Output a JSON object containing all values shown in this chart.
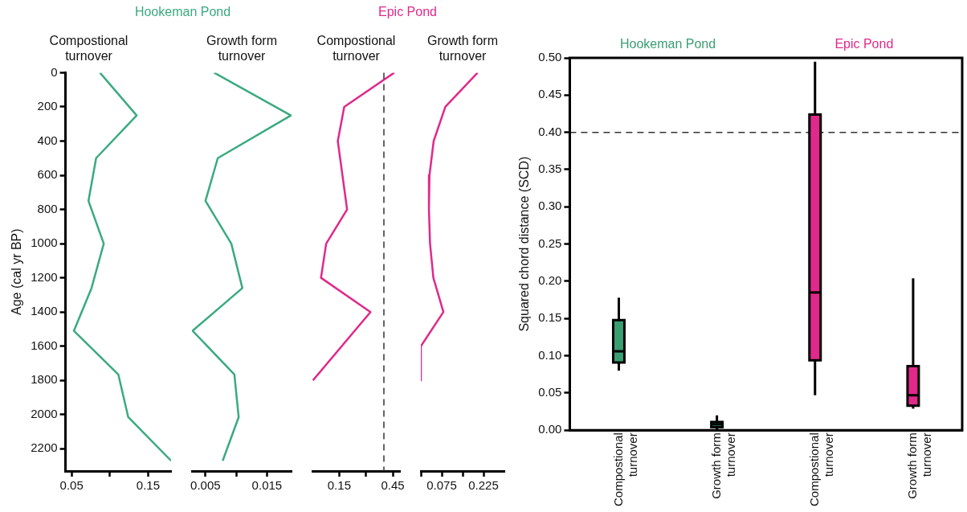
{
  "chart_data": [
    {
      "type": "line",
      "title": "Compostional turnover",
      "ylabel": "Age (cal yr BP)",
      "annotations": [
        "Hookeman Pond"
      ],
      "series": [
        {
          "color": "#3aaa7f",
          "x": [
            0.087,
            0.135,
            0.082,
            0.072,
            0.092,
            0.076,
            0.053,
            0.111,
            0.124,
            0.18
          ],
          "values": [
            0,
            250,
            500,
            750,
            1000,
            1260,
            1510,
            1765,
            2015,
            2270
          ]
        }
      ],
      "xlim": [
        0.042,
        0.18
      ],
      "xticks": [
        0.05,
        {
          "value": 0.1,
          "label": null
        },
        0.15
      ],
      "ylim": [
        2330,
        0
      ],
      "yticks": [
        0,
        200,
        400,
        600,
        800,
        1000,
        1200,
        1400,
        1600,
        1800,
        2000,
        2200
      ]
    },
    {
      "type": "line",
      "title": "Growth form turnover",
      "tick_labels": "x",
      "series": [
        {
          "color": "#3aaa7f",
          "x": [
            0.0064,
            0.0189,
            0.007,
            0.005,
            0.0092,
            0.011,
            0.0029,
            0.0097,
            0.0104,
            0.0078
          ],
          "values": [
            0,
            250,
            500,
            750,
            1000,
            1260,
            1510,
            1765,
            2015,
            2270
          ]
        }
      ],
      "xlim": [
        0.0028,
        0.019
      ],
      "xticks": [
        0.005,
        {
          "value": 0.01,
          "label": null
        },
        0.015
      ],
      "ylim": [
        2330,
        0
      ]
    },
    {
      "type": "line",
      "title": "Compostional turnover",
      "tick_labels": "x",
      "annotations": [
        "Epic Pond"
      ],
      "series": [
        {
          "color": "#e0298a",
          "x": [
            0.458,
            0.178,
            0.142,
            0.194,
            0.077,
            0.048,
            0.325,
            0.003
          ],
          "values": [
            0,
            200,
            400,
            800,
            1000,
            1200,
            1400,
            1800
          ]
        }
      ],
      "xlim": [
        0,
        0.49
      ],
      "xticks": [
        0.15,
        {
          "value": 0.3,
          "label": null
        },
        0.45
      ],
      "ylim": [
        2330,
        0
      ],
      "ref_lines": [
        {
          "axis": "x",
          "value": 0.4,
          "line_style": "dashed",
          "color": "#333333"
        }
      ]
    },
    {
      "type": "line",
      "title": "Growth form turnover",
      "tick_labels": "x",
      "series": [
        {
          "color": "#e0298a",
          "x": [
            0.204,
            0.088,
            0.046,
            0.031,
            0.029,
            0.033,
            0.045,
            0.081,
            0,
            0
          ],
          "values": [
            0,
            200,
            400,
            600,
            800,
            1000,
            1200,
            1400,
            1600,
            1800
          ]
        }
      ],
      "xlim": [
        0,
        0.3
      ],
      "xticks": [
        {
          "value": 0,
          "label": null
        },
        0.075,
        {
          "value": 0.15,
          "label": null
        },
        0.225
      ],
      "ylim": [
        2330,
        0
      ]
    },
    {
      "type": "box",
      "ylabel": "Squared chord distance (SCD)",
      "annotations": [
        "Hookeman Pond",
        "Epic Pond"
      ],
      "categories": [
        "Compostional turnover",
        "Growth form turnover",
        "Compostional turnover",
        "Growth form turnover"
      ],
      "colors": [
        "#3a9e72",
        "#3a9e72",
        "#e0298a",
        "#e0298a"
      ],
      "boxes": [
        {
          "low": 0.08,
          "q1": 0.091,
          "median": 0.106,
          "q3": 0.148,
          "high": 0.178
        },
        {
          "low": 0.001,
          "q1": 0.004,
          "median": 0.008,
          "q3": 0.011,
          "high": 0.02
        },
        {
          "low": 0.047,
          "q1": 0.094,
          "median": 0.185,
          "q3": 0.424,
          "high": 0.495
        },
        {
          "low": 0.029,
          "q1": 0.033,
          "median": 0.047,
          "q3": 0.086,
          "high": 0.204
        }
      ],
      "ylim": [
        0,
        0.5
      ],
      "yticks": [
        {
          "value": 0,
          "label": "0.00"
        },
        {
          "value": 0.05,
          "label": "0.05"
        },
        {
          "value": 0.1,
          "label": "0.10"
        },
        {
          "value": 0.15,
          "label": "0.15"
        },
        {
          "value": 0.2,
          "label": "0.20"
        },
        {
          "value": 0.25,
          "label": "0.25"
        },
        {
          "value": 0.3,
          "label": "0.30"
        },
        {
          "value": 0.35,
          "label": "0.35"
        },
        {
          "value": 0.4,
          "label": "0.40"
        },
        {
          "value": 0.45,
          "label": "0.45"
        },
        {
          "value": 0.5,
          "label": "0.50"
        }
      ],
      "ref_lines": [
        {
          "axis": "y",
          "value": 0.4,
          "line_style": "dashed",
          "color": "#333333"
        }
      ]
    }
  ]
}
